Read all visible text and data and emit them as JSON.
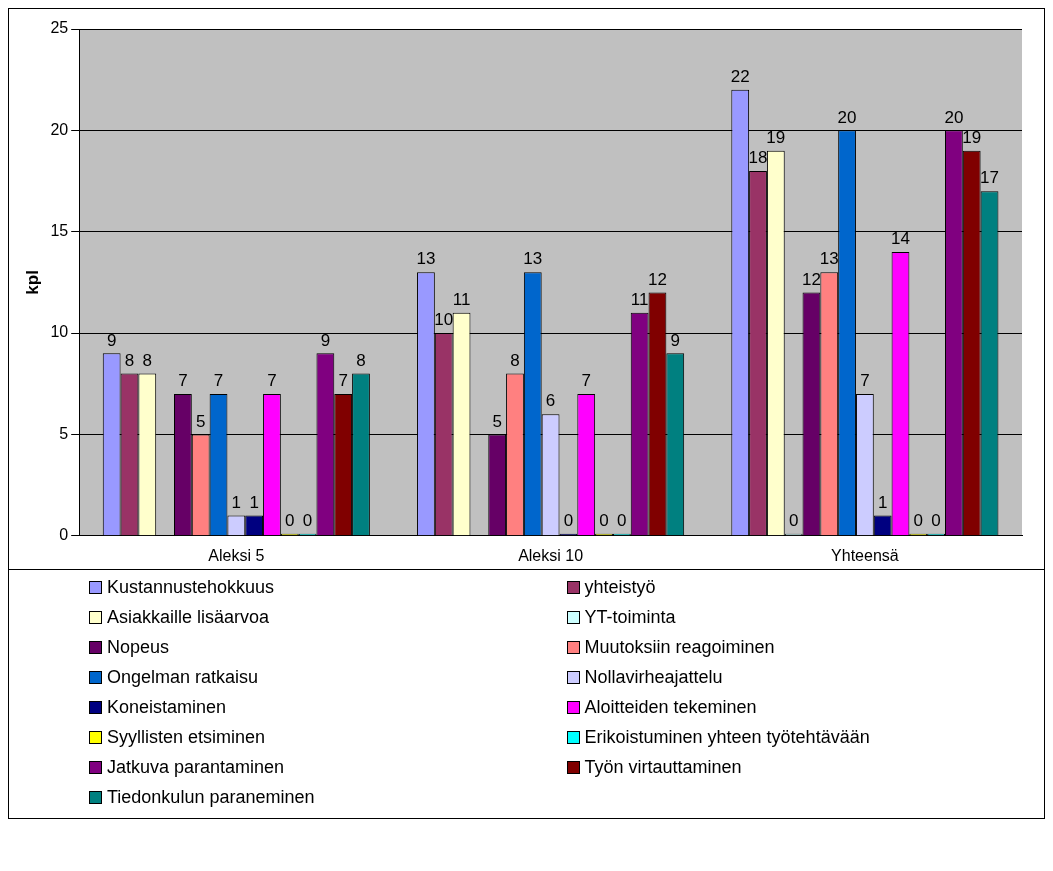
{
  "chart_data": {
    "type": "bar",
    "ylabel": "kpl",
    "categories": [
      "Aleksi 5",
      "Aleksi 10",
      "Yhteensä"
    ],
    "series": [
      {
        "name": "Kustannustehokkuus",
        "color": "#9999ff",
        "values": [
          9,
          13,
          22
        ]
      },
      {
        "name": "yhteistyö",
        "color": "#993366",
        "values": [
          8,
          10,
          18
        ]
      },
      {
        "name": "Asiakkaille lisäarvoa",
        "color": "#ffffcc",
        "values": [
          8,
          11,
          19
        ]
      },
      {
        "name": "YT-toiminta",
        "color": "#ccffff",
        "values": [
          null,
          null,
          0
        ]
      },
      {
        "name": "Nopeus",
        "color": "#660066",
        "values": [
          7,
          5,
          12
        ]
      },
      {
        "name": "Muutoksiin reagoiminen",
        "color": "#ff8080",
        "values": [
          5,
          8,
          13
        ]
      },
      {
        "name": "Ongelman ratkaisu",
        "color": "#0066cc",
        "values": [
          7,
          13,
          20
        ]
      },
      {
        "name": "Nollavirheajattelu",
        "color": "#ccccff",
        "values": [
          1,
          6,
          7
        ]
      },
      {
        "name": "Koneistaminen",
        "color": "#000080",
        "values": [
          1,
          0,
          1
        ]
      },
      {
        "name": "Aloitteiden tekeminen",
        "color": "#ff00ff",
        "values": [
          7,
          7,
          14
        ]
      },
      {
        "name": "Syyllisten etsiminen",
        "color": "#ffff00",
        "values": [
          0,
          0,
          0
        ]
      },
      {
        "name": "Erikoistuminen yhteen työtehtävään",
        "color": "#00ffff",
        "values": [
          0,
          0,
          0
        ]
      },
      {
        "name": "Jatkuva parantaminen",
        "color": "#800080",
        "values": [
          9,
          11,
          20
        ]
      },
      {
        "name": "Työn virtauttaminen",
        "color": "#800000",
        "values": [
          7,
          12,
          19
        ]
      },
      {
        "name": "Tiedonkulun paraneminen",
        "color": "#008080",
        "values": [
          8,
          9,
          17
        ]
      }
    ],
    "ylim": [
      0,
      25
    ],
    "yticks": [
      0,
      5,
      10,
      15,
      20,
      25
    ],
    "grid": "y",
    "data_labels": true,
    "legend": "bottom"
  }
}
